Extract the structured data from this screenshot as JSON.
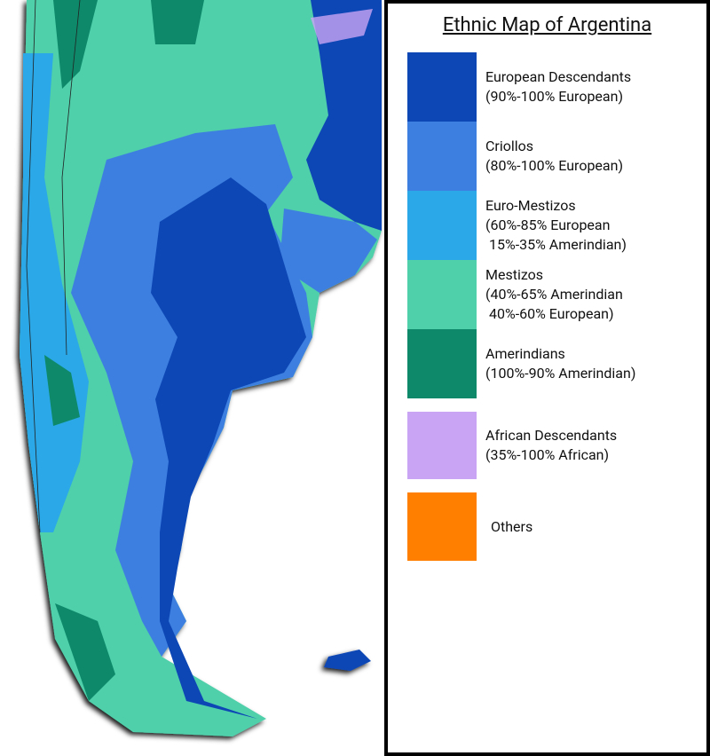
{
  "title": "Ethnic Map of Argentina",
  "legend": [
    {
      "lines": [
        "European Descendants",
        "(90%-100% European)"
      ],
      "color": "#0d47b5"
    },
    {
      "lines": [
        "Criollos",
        "(80%-100% European)"
      ],
      "color": "#3d7fe0"
    },
    {
      "lines": [
        "Euro-Mestizos",
        "(60%-85% European",
        "15%-35% Amerindian)"
      ],
      "color": "#2aa8e8"
    },
    {
      "lines": [
        "Mestizos",
        "(40%-65% Amerindian",
        "40%-60% European)"
      ],
      "color": "#4fcfaa"
    },
    {
      "lines": [
        "Amerindians",
        "(100%-90% Amerindian)"
      ],
      "color": "#0e8a6a"
    },
    {
      "lines": [
        "African Descendants",
        "(35%-100% African)"
      ],
      "color": "#c9a4f5"
    },
    {
      "lines": [
        "Others"
      ],
      "color": "#ff8000"
    }
  ]
}
